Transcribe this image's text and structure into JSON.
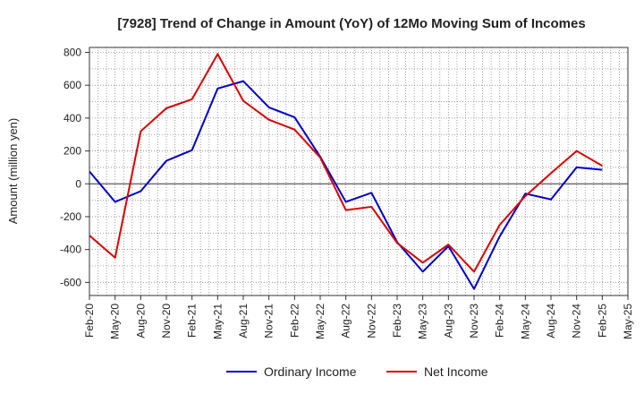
{
  "chart_data": {
    "type": "line",
    "title": "[7928]  Trend of Change in Amount (YoY) of 12Mo Moving Sum of Incomes",
    "xlabel": "",
    "ylabel": "Amount (million yen)",
    "ylim": [
      -680,
      830
    ],
    "yticks": [
      -600,
      -400,
      -200,
      0,
      200,
      400,
      600,
      800
    ],
    "ytick_labels": [
      "-600",
      "-400",
      "-200",
      "0",
      "200",
      "400",
      "600",
      "800"
    ],
    "categories": [
      "Feb-20",
      "May-20",
      "Aug-20",
      "Nov-20",
      "Feb-21",
      "May-21",
      "Aug-21",
      "Nov-21",
      "Feb-22",
      "May-22",
      "Aug-22",
      "Nov-22",
      "Feb-23",
      "May-23",
      "Aug-23",
      "Nov-23",
      "Feb-24",
      "May-24",
      "Aug-24",
      "Nov-24",
      "Feb-25",
      "May-25"
    ],
    "grid": true,
    "legend_position": "bottom",
    "series": [
      {
        "name": "Ordinary Income",
        "color": "#0000cc",
        "values": [
          75,
          -110,
          -45,
          140,
          205,
          580,
          625,
          465,
          405,
          165,
          -110,
          -55,
          -355,
          -535,
          -380,
          -640,
          -320,
          -60,
          -95,
          100,
          85,
          null
        ]
      },
      {
        "name": "Net Income",
        "color": "#dd0000",
        "values": [
          -315,
          -450,
          320,
          460,
          515,
          790,
          505,
          390,
          330,
          160,
          -160,
          -140,
          -360,
          -480,
          -370,
          -535,
          -250,
          -75,
          65,
          200,
          110,
          null
        ]
      }
    ]
  }
}
